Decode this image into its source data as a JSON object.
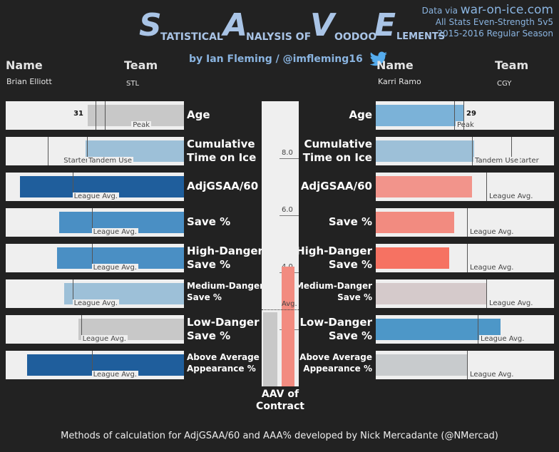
{
  "title": {
    "letters": [
      "S",
      "A",
      "V",
      "E"
    ],
    "words": [
      "TATISTICAL",
      "NALYSIS OF",
      "OODOO",
      "LEMENTS"
    ]
  },
  "byline": "by Ian Fleming / @imfleming16",
  "source": {
    "line1_prefix": "Data via",
    "line1_site": "war-on-ice.com",
    "line2": "All Stats Even-Strength 5v5",
    "line3": "2015-2016 Regular Season"
  },
  "left_player": {
    "name_header": "Name",
    "team_header": "Team",
    "name": "Brian Elliott",
    "team": "STL"
  },
  "right_player": {
    "name_header": "Name",
    "team_header": "Team",
    "name": "Karri Ramo",
    "team": "CGY"
  },
  "ref_labels": {
    "peak": "Peak",
    "starter": "Starter",
    "tandem": "Tandem Use",
    "league": "League Avg.",
    "avg": "Avg."
  },
  "metrics": [
    {
      "label": "Age",
      "small": false
    },
    {
      "label": "Cumulative Time on Ice",
      "small": false
    },
    {
      "label": "AdjGSAA/60",
      "small": false
    },
    {
      "label": "Save %",
      "small": false
    },
    {
      "label": "High-Danger Save %",
      "small": false
    },
    {
      "label": "Medium-Danger Save %",
      "small": true
    },
    {
      "label": "Low-Danger Save %",
      "small": false
    },
    {
      "label": "Above Average Appearance %",
      "small": true
    }
  ],
  "aav": {
    "label_line1": "AAV of",
    "label_line2": "Contract",
    "ticks": [
      "8.0",
      "6.0",
      "4.0",
      "2.0"
    ]
  },
  "footer": "Methods of calculation for AdjGSAA/60 and AAA% developed by Nick Mercadante (@NMercad)",
  "chart_data": {
    "type": "bar",
    "categories": [
      "Age",
      "Cumulative Time on Ice",
      "AdjGSAA/60",
      "Save %",
      "High-Danger Save %",
      "Medium-Danger Save %",
      "Low-Danger Save %",
      "Above Average Appearance %"
    ],
    "scale_max": 1.0,
    "series": [
      {
        "name": "Brian Elliott",
        "values": [
          0.54,
          0.55,
          0.92,
          0.7,
          0.71,
          0.67,
          0.59,
          0.88
        ],
        "colors": [
          "#c8c8c8",
          "#9dc0d8",
          "#1f5e9c",
          "#4a8fc4",
          "#4a8fc4",
          "#9dc0d8",
          "#c8c8c8",
          "#1f5e9c"
        ],
        "age_value": "31",
        "refs": [
          [
            {
              "pos": 0.44,
              "label": "peak"
            },
            {
              "pos": 0.49,
              "label": null
            }
          ],
          [
            {
              "pos": 0.76,
              "label": "starter"
            },
            {
              "pos": 0.54,
              "label": "tandem"
            }
          ],
          [
            {
              "pos": 0.62,
              "label": "league"
            }
          ],
          [
            {
              "pos": 0.51,
              "label": "league"
            }
          ],
          [
            {
              "pos": 0.51,
              "label": "league"
            }
          ],
          [
            {
              "pos": 0.62,
              "label": "league"
            }
          ],
          [
            {
              "pos": 0.57,
              "label": "league"
            }
          ],
          [
            {
              "pos": 0.51,
              "label": "league"
            }
          ]
        ]
      },
      {
        "name": "Karri Ramo",
        "values": [
          0.49,
          0.55,
          0.54,
          0.44,
          0.41,
          0.62,
          0.7,
          0.51
        ],
        "colors": [
          "#7bb2d8",
          "#9dc0d8",
          "#f2948b",
          "#f28b80",
          "#f67262",
          "#d5cacb",
          "#4d97c8",
          "#c8cbcd"
        ],
        "age_value": "29",
        "refs": [
          [
            {
              "pos": 0.44,
              "label": "peak"
            },
            {
              "pos": 0.49,
              "label": null
            }
          ],
          [
            {
              "pos": 0.76,
              "label": "starter"
            },
            {
              "pos": 0.54,
              "label": "tandem"
            }
          ],
          [
            {
              "pos": 0.62,
              "label": "league"
            }
          ],
          [
            {
              "pos": 0.51,
              "label": "league"
            }
          ],
          [
            {
              "pos": 0.51,
              "label": "league"
            }
          ],
          [
            {
              "pos": 0.62,
              "label": "league"
            }
          ],
          [
            {
              "pos": 0.57,
              "label": "league"
            }
          ],
          [
            {
              "pos": 0.51,
              "label": "league"
            }
          ]
        ]
      }
    ],
    "aav_contract": {
      "ylim": [
        0,
        10
      ],
      "league_avg": 2.7,
      "left_value": 2.6,
      "right_value": 4.2,
      "left_color": "#c8c8c8",
      "right_color": "#f28b80"
    }
  }
}
